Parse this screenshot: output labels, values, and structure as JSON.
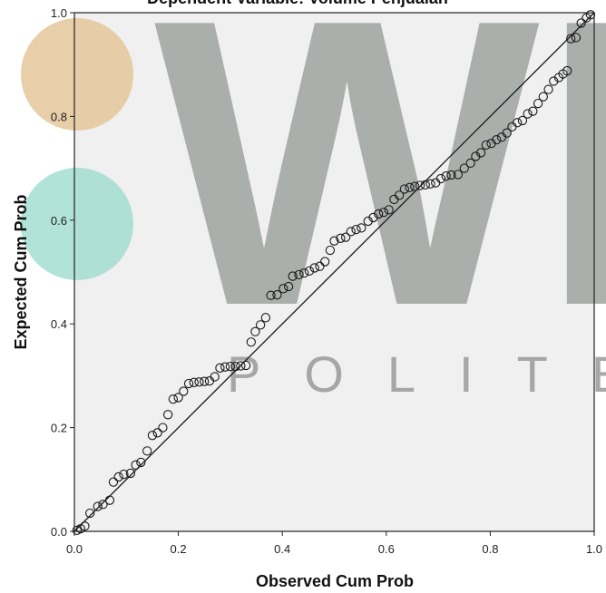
{
  "chart_data": {
    "type": "scatter",
    "title": "Dependent Variable: Volume Penjualan",
    "xlabel": "Observed Cum Prob",
    "ylabel": "Expected Cum Prob",
    "xlim": [
      0,
      1
    ],
    "ylim": [
      0,
      1
    ],
    "x_ticks": [
      "0.0",
      "0.2",
      "0.4",
      "0.6",
      "0.8",
      "1.0"
    ],
    "y_ticks": [
      "0.0",
      "0.2",
      "0.4",
      "0.6",
      "0.8",
      "1.0"
    ],
    "reference_line": {
      "from": [
        0,
        0
      ],
      "to": [
        1,
        1
      ]
    },
    "grid": false,
    "plot_background": "#f0f0f0",
    "point_color": "#1a1a1a",
    "points": [
      [
        0.005,
        0.002
      ],
      [
        0.012,
        0.005
      ],
      [
        0.02,
        0.01
      ],
      [
        0.03,
        0.035
      ],
      [
        0.045,
        0.048
      ],
      [
        0.055,
        0.052
      ],
      [
        0.068,
        0.06
      ],
      [
        0.075,
        0.095
      ],
      [
        0.085,
        0.105
      ],
      [
        0.095,
        0.11
      ],
      [
        0.108,
        0.112
      ],
      [
        0.118,
        0.128
      ],
      [
        0.128,
        0.133
      ],
      [
        0.14,
        0.155
      ],
      [
        0.15,
        0.185
      ],
      [
        0.16,
        0.19
      ],
      [
        0.17,
        0.2
      ],
      [
        0.18,
        0.225
      ],
      [
        0.19,
        0.255
      ],
      [
        0.2,
        0.258
      ],
      [
        0.21,
        0.27
      ],
      [
        0.22,
        0.285
      ],
      [
        0.23,
        0.287
      ],
      [
        0.24,
        0.288
      ],
      [
        0.25,
        0.289
      ],
      [
        0.26,
        0.29
      ],
      [
        0.27,
        0.298
      ],
      [
        0.28,
        0.315
      ],
      [
        0.29,
        0.317
      ],
      [
        0.3,
        0.318
      ],
      [
        0.31,
        0.318
      ],
      [
        0.32,
        0.319
      ],
      [
        0.33,
        0.32
      ],
      [
        0.34,
        0.365
      ],
      [
        0.348,
        0.385
      ],
      [
        0.358,
        0.398
      ],
      [
        0.368,
        0.412
      ],
      [
        0.378,
        0.455
      ],
      [
        0.39,
        0.456
      ],
      [
        0.402,
        0.468
      ],
      [
        0.412,
        0.472
      ],
      [
        0.42,
        0.492
      ],
      [
        0.432,
        0.495
      ],
      [
        0.442,
        0.498
      ],
      [
        0.452,
        0.502
      ],
      [
        0.462,
        0.508
      ],
      [
        0.472,
        0.511
      ],
      [
        0.482,
        0.52
      ],
      [
        0.492,
        0.542
      ],
      [
        0.5,
        0.56
      ],
      [
        0.512,
        0.565
      ],
      [
        0.522,
        0.567
      ],
      [
        0.532,
        0.578
      ],
      [
        0.542,
        0.582
      ],
      [
        0.552,
        0.585
      ],
      [
        0.565,
        0.598
      ],
      [
        0.575,
        0.605
      ],
      [
        0.585,
        0.612
      ],
      [
        0.595,
        0.615
      ],
      [
        0.605,
        0.62
      ],
      [
        0.615,
        0.64
      ],
      [
        0.625,
        0.648
      ],
      [
        0.635,
        0.66
      ],
      [
        0.645,
        0.663
      ],
      [
        0.655,
        0.665
      ],
      [
        0.665,
        0.667
      ],
      [
        0.675,
        0.668
      ],
      [
        0.685,
        0.67
      ],
      [
        0.695,
        0.672
      ],
      [
        0.705,
        0.68
      ],
      [
        0.715,
        0.685
      ],
      [
        0.725,
        0.687
      ],
      [
        0.738,
        0.688
      ],
      [
        0.75,
        0.7
      ],
      [
        0.762,
        0.71
      ],
      [
        0.772,
        0.723
      ],
      [
        0.782,
        0.73
      ],
      [
        0.792,
        0.745
      ],
      [
        0.802,
        0.748
      ],
      [
        0.812,
        0.755
      ],
      [
        0.822,
        0.76
      ],
      [
        0.832,
        0.768
      ],
      [
        0.842,
        0.78
      ],
      [
        0.852,
        0.788
      ],
      [
        0.862,
        0.792
      ],
      [
        0.872,
        0.805
      ],
      [
        0.882,
        0.81
      ],
      [
        0.892,
        0.825
      ],
      [
        0.902,
        0.838
      ],
      [
        0.912,
        0.852
      ],
      [
        0.922,
        0.868
      ],
      [
        0.932,
        0.875
      ],
      [
        0.94,
        0.882
      ],
      [
        0.948,
        0.888
      ],
      [
        0.955,
        0.95
      ],
      [
        0.965,
        0.952
      ],
      [
        0.975,
        0.98
      ],
      [
        0.985,
        0.99
      ],
      [
        0.993,
        0.996
      ]
    ]
  },
  "watermark": {
    "letters": "WE",
    "subtext": "POLITEK",
    "circle_colors": [
      "#e4c79a",
      "#9fdccf"
    ]
  }
}
